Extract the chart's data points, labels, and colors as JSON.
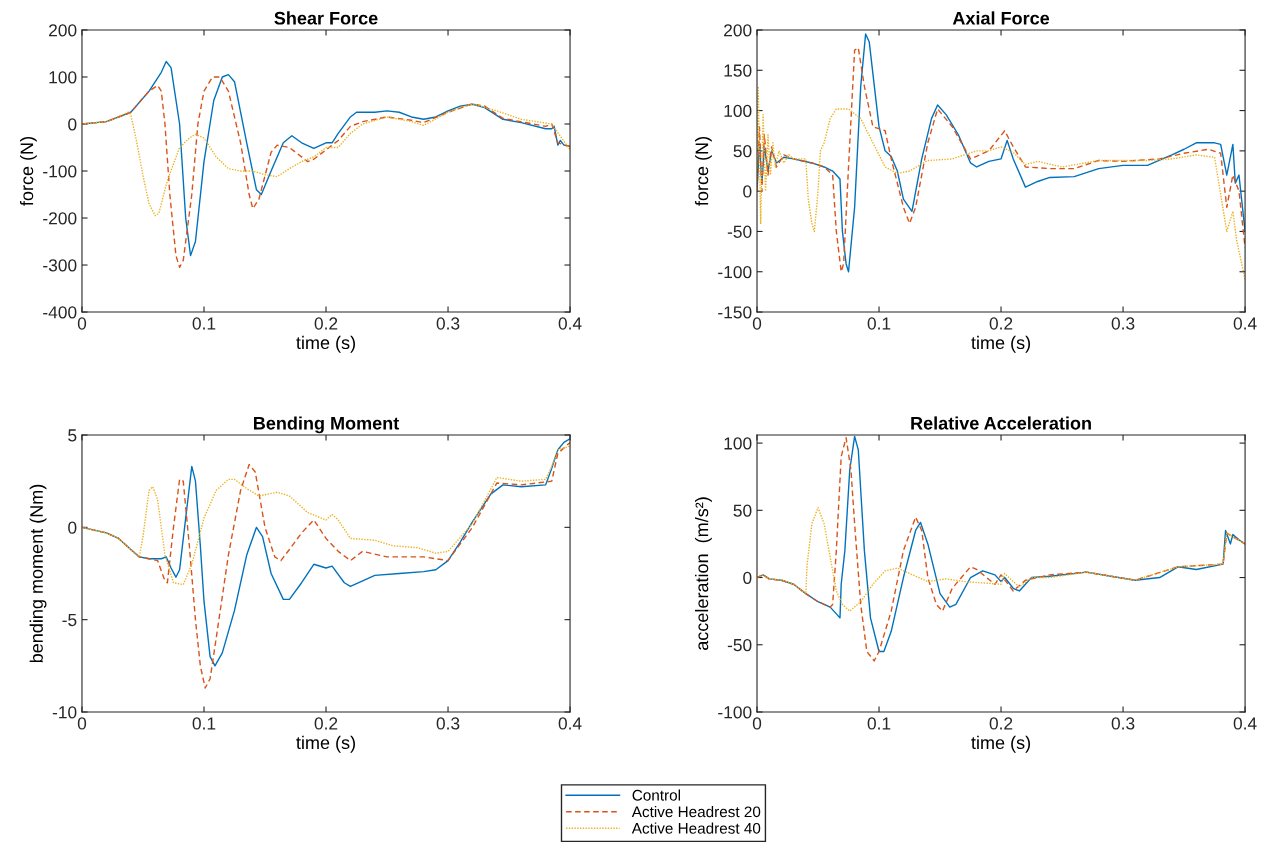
{
  "chart_data": [
    {
      "type": "line",
      "title": "Shear Force",
      "xlabel": "time (s)",
      "ylabel": "force (N)",
      "xlim": [
        0,
        0.4
      ],
      "xticks": [
        0,
        0.1,
        0.2,
        0.3,
        0.4
      ],
      "ylim": [
        -400,
        200
      ],
      "yticks": [
        -400,
        -300,
        -200,
        -100,
        0,
        100,
        200
      ],
      "grid": false,
      "legend": "bottom",
      "series": [
        {
          "name": "Control",
          "color": "#0072bd",
          "line_style": "solid",
          "x": [
            0,
            0.02,
            0.04,
            0.055,
            0.065,
            0.069,
            0.073,
            0.08,
            0.085,
            0.089,
            0.093,
            0.1,
            0.108,
            0.115,
            0.12,
            0.125,
            0.135,
            0.143,
            0.147,
            0.155,
            0.165,
            0.172,
            0.18,
            0.19,
            0.2,
            0.205,
            0.21,
            0.22,
            0.225,
            0.24,
            0.25,
            0.26,
            0.27,
            0.28,
            0.29,
            0.3,
            0.31,
            0.32,
            0.33,
            0.345,
            0.36,
            0.38,
            0.385,
            0.387,
            0.39,
            0.392,
            0.395,
            0.4
          ],
          "values": [
            0,
            5,
            25,
            70,
            110,
            133,
            120,
            0,
            -200,
            -280,
            -250,
            -80,
            50,
            100,
            105,
            90,
            -40,
            -140,
            -150,
            -100,
            -40,
            -25,
            -40,
            -52,
            -40,
            -40,
            -20,
            15,
            25,
            25,
            28,
            25,
            15,
            10,
            15,
            28,
            38,
            42,
            35,
            10,
            3,
            -10,
            -10,
            -5,
            -45,
            -35,
            -45,
            -48
          ]
        },
        {
          "name": "Active Headrest 20",
          "color": "#d95319",
          "line_style": "dashed",
          "x": [
            0,
            0.02,
            0.04,
            0.055,
            0.062,
            0.065,
            0.068,
            0.072,
            0.077,
            0.08,
            0.083,
            0.09,
            0.095,
            0.1,
            0.107,
            0.113,
            0.12,
            0.13,
            0.137,
            0.14,
            0.145,
            0.155,
            0.16,
            0.17,
            0.18,
            0.185,
            0.19,
            0.2,
            0.21,
            0.22,
            0.23,
            0.25,
            0.27,
            0.28,
            0.3,
            0.32,
            0.33,
            0.345,
            0.38,
            0.385,
            0.39,
            0.4
          ],
          "values": [
            0,
            5,
            25,
            70,
            82,
            70,
            0,
            -150,
            -280,
            -305,
            -290,
            -150,
            0,
            70,
            100,
            100,
            70,
            -40,
            -150,
            -180,
            -160,
            -60,
            -45,
            -50,
            -70,
            -80,
            -75,
            -55,
            -35,
            -5,
            5,
            15,
            8,
            3,
            25,
            43,
            38,
            12,
            -5,
            0,
            -40,
            -48
          ]
        },
        {
          "name": "Active Headrest 40",
          "color": "#edb120",
          "line_style": "dotted",
          "x": [
            0,
            0.02,
            0.038,
            0.04,
            0.045,
            0.05,
            0.055,
            0.06,
            0.063,
            0.07,
            0.08,
            0.088,
            0.093,
            0.1,
            0.11,
            0.12,
            0.13,
            0.14,
            0.15,
            0.16,
            0.17,
            0.18,
            0.19,
            0.2,
            0.21,
            0.22,
            0.23,
            0.25,
            0.27,
            0.28,
            0.3,
            0.32,
            0.34,
            0.36,
            0.385,
            0.4
          ],
          "values": [
            0,
            5,
            25,
            20,
            -40,
            -110,
            -170,
            -195,
            -190,
            -120,
            -50,
            -30,
            -22,
            -30,
            -70,
            -95,
            -100,
            -100,
            -108,
            -112,
            -95,
            -80,
            -70,
            -50,
            -50,
            -20,
            0,
            15,
            5,
            -3,
            25,
            43,
            28,
            10,
            0,
            -55
          ]
        }
      ]
    },
    {
      "type": "line",
      "title": "Axial Force",
      "xlabel": "time (s)",
      "ylabel": "force (N)",
      "xlim": [
        0,
        0.4
      ],
      "xticks": [
        0,
        0.1,
        0.2,
        0.3,
        0.4
      ],
      "ylim": [
        -150,
        200
      ],
      "yticks": [
        -150,
        -100,
        -50,
        0,
        50,
        100,
        150,
        200
      ],
      "grid": false,
      "series": [
        {
          "color": "#0072bd",
          "line_style": "solid",
          "x": [
            0,
            0.002,
            0.004,
            0.006,
            0.009,
            0.012,
            0.016,
            0.022,
            0.03,
            0.045,
            0.055,
            0.062,
            0.068,
            0.07,
            0.073,
            0.075,
            0.08,
            0.085,
            0.089,
            0.092,
            0.1,
            0.105,
            0.11,
            0.115,
            0.12,
            0.127,
            0.135,
            0.143,
            0.148,
            0.155,
            0.165,
            0.175,
            0.18,
            0.19,
            0.2,
            0.205,
            0.21,
            0.22,
            0.23,
            0.24,
            0.26,
            0.28,
            0.3,
            0.32,
            0.34,
            0.35,
            0.36,
            0.375,
            0.38,
            0.385,
            0.39,
            0.392,
            0.395,
            0.4
          ],
          "values": [
            0,
            60,
            10,
            55,
            25,
            50,
            35,
            42,
            40,
            35,
            30,
            25,
            15,
            -50,
            -90,
            -100,
            -20,
            130,
            195,
            185,
            80,
            50,
            43,
            25,
            -10,
            -25,
            40,
            90,
            107,
            95,
            70,
            35,
            30,
            37,
            40,
            63,
            40,
            5,
            12,
            17,
            18,
            28,
            32,
            32,
            45,
            52,
            60,
            60,
            58,
            20,
            58,
            10,
            20,
            -50
          ]
        },
        {
          "color": "#d95319",
          "line_style": "dashed",
          "x": [
            0,
            0.002,
            0.004,
            0.006,
            0.009,
            0.012,
            0.016,
            0.022,
            0.03,
            0.045,
            0.055,
            0.062,
            0.065,
            0.069,
            0.071,
            0.075,
            0.08,
            0.083,
            0.088,
            0.095,
            0.105,
            0.11,
            0.12,
            0.125,
            0.13,
            0.14,
            0.148,
            0.16,
            0.175,
            0.19,
            0.203,
            0.21,
            0.22,
            0.24,
            0.26,
            0.28,
            0.3,
            0.33,
            0.35,
            0.37,
            0.38,
            0.385,
            0.39,
            0.395,
            0.4
          ],
          "values": [
            0,
            80,
            0,
            70,
            20,
            55,
            30,
            45,
            40,
            35,
            30,
            20,
            -50,
            -100,
            -90,
            30,
            175,
            178,
            130,
            80,
            75,
            40,
            -20,
            -40,
            -20,
            60,
            102,
            80,
            40,
            50,
            75,
            55,
            30,
            28,
            28,
            38,
            37,
            40,
            47,
            52,
            47,
            -20,
            20,
            0,
            -70
          ]
        },
        {
          "color": "#edb120",
          "line_style": "dotted",
          "x": [
            0,
            0.001,
            0.003,
            0.005,
            0.007,
            0.009,
            0.011,
            0.013,
            0.015,
            0.018,
            0.022,
            0.026,
            0.03,
            0.04,
            0.042,
            0.045,
            0.047,
            0.05,
            0.052,
            0.055,
            0.06,
            0.065,
            0.075,
            0.085,
            0.095,
            0.105,
            0.115,
            0.125,
            0.14,
            0.16,
            0.17,
            0.18,
            0.19,
            0.2,
            0.21,
            0.22,
            0.23,
            0.25,
            0.28,
            0.32,
            0.34,
            0.36,
            0.375,
            0.385,
            0.39,
            0.393,
            0.4
          ],
          "values": [
            0,
            130,
            -40,
            95,
            0,
            70,
            20,
            60,
            30,
            50,
            35,
            45,
            40,
            40,
            -10,
            -40,
            -50,
            0,
            50,
            60,
            90,
            102,
            102,
            90,
            60,
            30,
            22,
            25,
            38,
            40,
            45,
            50,
            50,
            55,
            48,
            33,
            37,
            30,
            38,
            38,
            40,
            45,
            42,
            -50,
            -25,
            -60,
            -110
          ]
        }
      ]
    },
    {
      "type": "line",
      "title": "Bending Moment",
      "xlabel": "time (s)",
      "ylabel": "bending moment (Nm)",
      "xlim": [
        0,
        0.4
      ],
      "xticks": [
        0,
        0.1,
        0.2,
        0.3,
        0.4
      ],
      "ylim": [
        -10,
        5
      ],
      "yticks": [
        -10,
        -5,
        0,
        5
      ],
      "grid": false,
      "series": [
        {
          "color": "#0072bd",
          "line_style": "solid",
          "x": [
            0,
            0.02,
            0.03,
            0.04,
            0.047,
            0.055,
            0.065,
            0.069,
            0.073,
            0.077,
            0.08,
            0.085,
            0.09,
            0.093,
            0.097,
            0.1,
            0.105,
            0.109,
            0.115,
            0.125,
            0.135,
            0.143,
            0.148,
            0.155,
            0.165,
            0.17,
            0.18,
            0.19,
            0.2,
            0.205,
            0.215,
            0.22,
            0.24,
            0.26,
            0.28,
            0.29,
            0.3,
            0.31,
            0.32,
            0.335,
            0.345,
            0.36,
            0.38,
            0.385,
            0.39,
            0.395,
            0.4
          ],
          "values": [
            0,
            -0.3,
            -0.6,
            -1.2,
            -1.6,
            -1.7,
            -1.7,
            -1.6,
            -2.2,
            -2.7,
            -2.3,
            0.5,
            3.3,
            2.5,
            -1,
            -4,
            -7,
            -7.5,
            -6.8,
            -4.5,
            -1.5,
            0,
            -0.5,
            -2.5,
            -3.9,
            -3.9,
            -3,
            -2,
            -2.2,
            -2.1,
            -3,
            -3.2,
            -2.6,
            -2.5,
            -2.4,
            -2.3,
            -1.8,
            -0.8,
            0.3,
            1.8,
            2.3,
            2.2,
            2.3,
            3.2,
            4.2,
            4.6,
            4.8
          ]
        },
        {
          "color": "#d95319",
          "line_style": "dashed",
          "x": [
            0,
            0.02,
            0.03,
            0.04,
            0.047,
            0.055,
            0.062,
            0.068,
            0.07,
            0.075,
            0.08,
            0.083,
            0.088,
            0.093,
            0.097,
            0.101,
            0.105,
            0.11,
            0.12,
            0.13,
            0.137,
            0.142,
            0.15,
            0.158,
            0.163,
            0.17,
            0.18,
            0.19,
            0.2,
            0.21,
            0.22,
            0.23,
            0.25,
            0.28,
            0.3,
            0.32,
            0.34,
            0.36,
            0.385,
            0.39,
            0.4
          ],
          "values": [
            0,
            -0.3,
            -0.6,
            -1.2,
            -1.6,
            -1.7,
            -1.8,
            -2.9,
            -3,
            0,
            2.6,
            2.5,
            -1,
            -5,
            -7.5,
            -8.7,
            -8.2,
            -6,
            -1.5,
            2,
            3.4,
            3,
            0,
            -1.6,
            -1.8,
            -1.2,
            -0.3,
            0.4,
            -0.6,
            -1.3,
            -1.8,
            -1.3,
            -1.6,
            -1.6,
            -1.8,
            0,
            2.4,
            2.3,
            2.5,
            4,
            4.6
          ]
        },
        {
          "color": "#edb120",
          "line_style": "dotted",
          "x": [
            0,
            0.02,
            0.03,
            0.04,
            0.047,
            0.05,
            0.055,
            0.058,
            0.062,
            0.068,
            0.075,
            0.083,
            0.09,
            0.1,
            0.11,
            0.12,
            0.125,
            0.135,
            0.145,
            0.16,
            0.17,
            0.185,
            0.2,
            0.205,
            0.21,
            0.22,
            0.24,
            0.255,
            0.275,
            0.29,
            0.3,
            0.32,
            0.34,
            0.36,
            0.38,
            0.385,
            0.39,
            0.4
          ],
          "values": [
            0,
            -0.3,
            -0.6,
            -1.2,
            -1.6,
            -0.5,
            2,
            2.2,
            1.5,
            -1.5,
            -3,
            -3.1,
            -2,
            0.5,
            2,
            2.6,
            2.6,
            2.1,
            1.7,
            1.9,
            1.7,
            0.8,
            0.4,
            0.7,
            0.4,
            -0.6,
            -0.7,
            -1,
            -1.1,
            -1.4,
            -1.3,
            0.2,
            2.7,
            2.5,
            2.6,
            3.3,
            4.2,
            4.4
          ]
        }
      ]
    },
    {
      "type": "line",
      "title": "Relative Acceleration",
      "xlabel": "time (s)",
      "ylabel": "acceleration  (m/s²)",
      "xlim": [
        0,
        0.4
      ],
      "xticks": [
        0,
        0.1,
        0.2,
        0.3,
        0.4
      ],
      "ylim": [
        -100,
        106
      ],
      "yticks": [
        -100,
        -50,
        0,
        50,
        100
      ],
      "grid": false,
      "series": [
        {
          "color": "#0072bd",
          "line_style": "solid",
          "x": [
            0,
            0.005,
            0.01,
            0.02,
            0.03,
            0.04,
            0.05,
            0.06,
            0.068,
            0.069,
            0.072,
            0.076,
            0.08,
            0.083,
            0.088,
            0.093,
            0.1,
            0.104,
            0.11,
            0.12,
            0.13,
            0.134,
            0.14,
            0.15,
            0.158,
            0.163,
            0.175,
            0.185,
            0.195,
            0.2,
            0.203,
            0.21,
            0.215,
            0.225,
            0.24,
            0.27,
            0.29,
            0.31,
            0.33,
            0.345,
            0.36,
            0.382,
            0.384,
            0.388,
            0.39,
            0.395,
            0.4
          ],
          "values": [
            0,
            2,
            -1,
            -2,
            -5,
            -12,
            -18,
            -22,
            -30,
            -5,
            20,
            80,
            105,
            95,
            20,
            -30,
            -55,
            -55,
            -40,
            0,
            35,
            41,
            25,
            -12,
            -22,
            -20,
            0,
            5,
            2,
            -3,
            0,
            -8,
            -10,
            0,
            1,
            4,
            1,
            -2,
            0,
            8,
            6,
            10,
            35,
            25,
            32,
            28,
            25
          ]
        },
        {
          "color": "#d95319",
          "line_style": "dashed",
          "x": [
            0,
            0.005,
            0.01,
            0.02,
            0.03,
            0.04,
            0.05,
            0.06,
            0.062,
            0.065,
            0.069,
            0.073,
            0.077,
            0.08,
            0.085,
            0.09,
            0.096,
            0.1,
            0.11,
            0.12,
            0.13,
            0.135,
            0.14,
            0.147,
            0.152,
            0.16,
            0.175,
            0.18,
            0.195,
            0.2,
            0.21,
            0.22,
            0.24,
            0.27,
            0.29,
            0.31,
            0.345,
            0.382,
            0.385,
            0.4
          ],
          "values": [
            0,
            2,
            -1,
            -2,
            -5,
            -12,
            -18,
            -22,
            -20,
            20,
            90,
            104,
            80,
            40,
            -20,
            -55,
            -62,
            -55,
            -25,
            20,
            45,
            35,
            0,
            -20,
            -25,
            -8,
            8,
            6,
            -5,
            2,
            -10,
            -2,
            2,
            4,
            1,
            -2,
            8,
            10,
            33,
            25
          ]
        },
        {
          "color": "#edb120",
          "line_style": "dotted",
          "x": [
            0,
            0.005,
            0.01,
            0.02,
            0.03,
            0.04,
            0.041,
            0.045,
            0.05,
            0.055,
            0.06,
            0.065,
            0.07,
            0.076,
            0.085,
            0.095,
            0.105,
            0.115,
            0.125,
            0.14,
            0.155,
            0.17,
            0.185,
            0.2,
            0.203,
            0.21,
            0.215,
            0.225,
            0.24,
            0.27,
            0.31,
            0.345,
            0.382,
            0.385,
            0.4
          ],
          "values": [
            0,
            2,
            -1,
            -2,
            -5,
            -12,
            9,
            40,
            52,
            40,
            15,
            -10,
            -20,
            -25,
            -18,
            -5,
            5,
            7,
            3,
            -3,
            -1,
            -3,
            -4,
            -5,
            3,
            -3,
            -7,
            0,
            0,
            4,
            -2,
            8,
            10,
            33,
            25
          ]
        }
      ]
    }
  ]
}
